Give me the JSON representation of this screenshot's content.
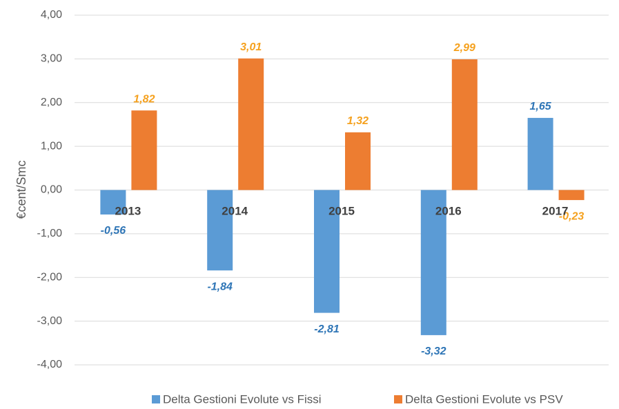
{
  "chart_data": {
    "type": "bar",
    "y_label": "€cent/Smc",
    "categories": [
      "2013",
      "2014",
      "2015",
      "2016",
      "2017"
    ],
    "series": [
      {
        "name": "Delta Gestioni Evolute vs Fissi",
        "color": "#5b9bd5",
        "label_color": "#2e75b6",
        "values": [
          -0.56,
          -1.84,
          -2.81,
          -3.32,
          1.65
        ],
        "value_labels": [
          "-0,56",
          "-1,84",
          "-2,81",
          "-3,32",
          "1,65"
        ]
      },
      {
        "name": "Delta Gestioni Evolute vs PSV",
        "color": "#ed7d31",
        "label_color": "#f5a11e",
        "values": [
          1.82,
          3.01,
          1.32,
          2.99,
          -0.23
        ],
        "value_labels": [
          "1,82",
          "3,01",
          "1,32",
          "2,99",
          "-0,23"
        ]
      }
    ],
    "ylim": [
      -4,
      4
    ],
    "yticks": [
      {
        "value": -4,
        "label": "-4,00"
      },
      {
        "value": -3,
        "label": "-3,00"
      },
      {
        "value": -2,
        "label": "-2,00"
      },
      {
        "value": -1,
        "label": "-1,00"
      },
      {
        "value": 0,
        "label": "0,00"
      },
      {
        "value": 1,
        "label": "1,00"
      },
      {
        "value": 2,
        "label": "2,00"
      },
      {
        "value": 3,
        "label": "3,00"
      },
      {
        "value": 4,
        "label": "4,00"
      }
    ],
    "grid": true,
    "legend": "bottom"
  }
}
